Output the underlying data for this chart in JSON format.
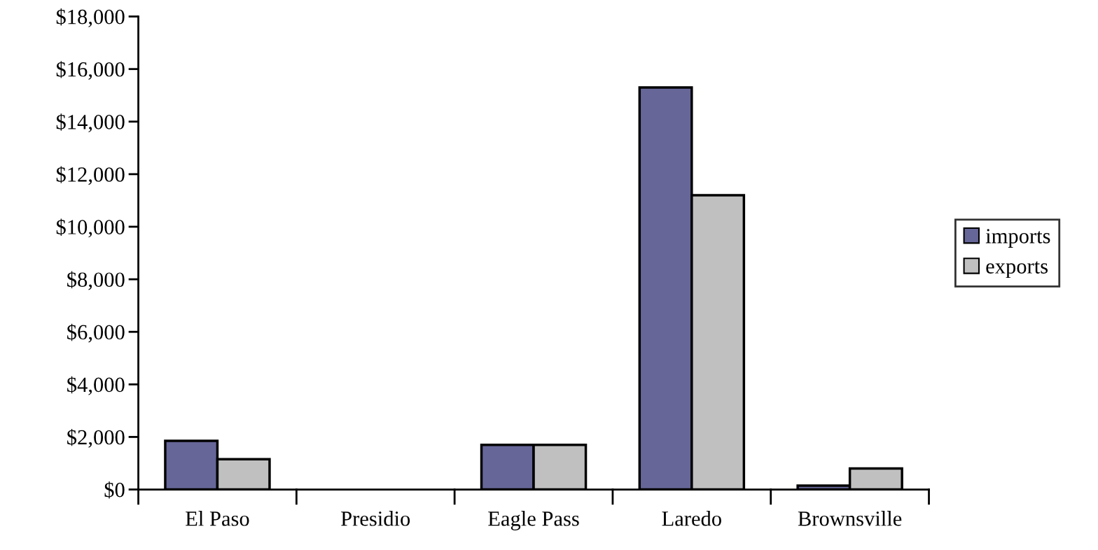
{
  "chart_data": {
    "type": "bar",
    "categories": [
      "El Paso",
      "Presidio",
      "Eagle Pass",
      "Laredo",
      "Brownsville"
    ],
    "series": [
      {
        "name": "imports",
        "color": "#666699",
        "values": [
          1850,
          null,
          1700,
          15300,
          150
        ]
      },
      {
        "name": "exports",
        "color": "#c0c0c0",
        "values": [
          1150,
          null,
          1700,
          11200,
          800
        ]
      }
    ],
    "ylim": [
      0,
      18000
    ],
    "yticks": [
      {
        "value": 0,
        "label": "$0"
      },
      {
        "value": 2000,
        "label": "$2,000"
      },
      {
        "value": 4000,
        "label": "$4,000"
      },
      {
        "value": 6000,
        "label": "$6,000"
      },
      {
        "value": 8000,
        "label": "$8,000"
      },
      {
        "value": 10000,
        "label": "$10,000"
      },
      {
        "value": 12000,
        "label": "$12,000"
      },
      {
        "value": 14000,
        "label": "$14,000"
      },
      {
        "value": 16000,
        "label": "$16,000"
      },
      {
        "value": 18000,
        "label": "$18,000"
      }
    ],
    "grid": false,
    "legend": "right"
  }
}
